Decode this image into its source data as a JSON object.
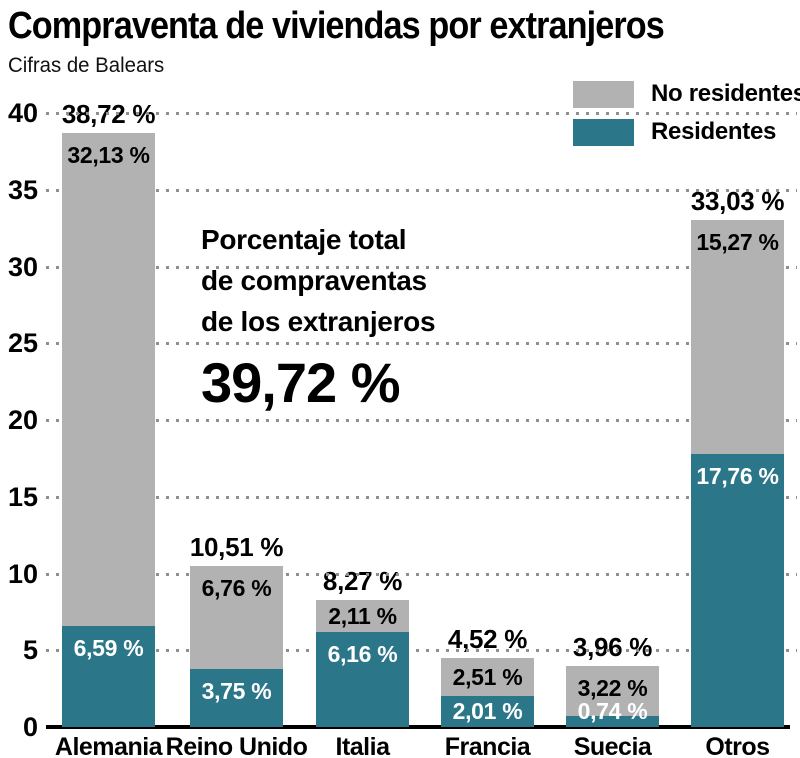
{
  "header": {
    "title": "Compraventa de viviendas por extranjeros",
    "subtitle": "Cifras de Balears"
  },
  "legend": {
    "position": "top-right",
    "items": [
      {
        "label": "No residentes",
        "color": "#b2b2b2"
      },
      {
        "label": "Residentes",
        "color": "#2b7689"
      }
    ]
  },
  "annotation": {
    "lines": [
      "Porcentaje total",
      "de compraventas",
      "de los extranjeros"
    ],
    "value": "39,72 %"
  },
  "chart_data": {
    "type": "bar",
    "subtype": "stacked",
    "title": "Compraventa de viviendas por extranjeros",
    "subtitle": "Cifras de Balears",
    "categories": [
      "Alemania",
      "Reino Unido",
      "Italia",
      "Francia",
      "Suecia",
      "Otros"
    ],
    "series": [
      {
        "name": "Residentes",
        "color": "#2b7689",
        "label_color": "#ffffff",
        "values": [
          6.59,
          3.75,
          6.16,
          2.01,
          0.74,
          17.76
        ],
        "labels": [
          "6,59 %",
          "3,75 %",
          "6,16 %",
          "2,01 %",
          "0,74 %",
          "17,76 %"
        ]
      },
      {
        "name": "No residentes",
        "color": "#b2b2b2",
        "label_color": "#000000",
        "values": [
          32.13,
          6.76,
          2.11,
          2.51,
          3.22,
          15.27
        ],
        "labels": [
          "32,13 %",
          "6,76 %",
          "2,11 %",
          "2,51 %",
          "3,22 %",
          "15,27 %"
        ]
      }
    ],
    "totals": [
      38.72,
      10.51,
      8.27,
      4.52,
      3.96,
      33.03
    ],
    "total_labels": [
      "38,72 %",
      "10,51 %",
      "8,27 %",
      "4,52 %",
      "3,96 %",
      "33,03 %"
    ],
    "overall_total_label": "39,72 %",
    "xlabel": "",
    "ylabel": "",
    "ylim": [
      0,
      40
    ],
    "ytick_step": 5,
    "grid": "dotted-horizontal",
    "gridline_color": "#8f8f8f",
    "axis_color": "#000000"
  }
}
